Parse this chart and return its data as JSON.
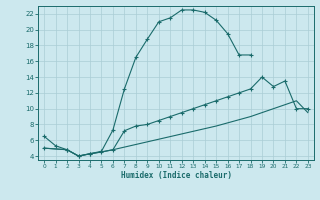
{
  "xlabel": "Humidex (Indice chaleur)",
  "bg_color": "#cce8ee",
  "grid_color": "#aacdd5",
  "line_color": "#1a6b6b",
  "xlim": [
    -0.5,
    23.5
  ],
  "ylim": [
    3.5,
    23.0
  ],
  "xticks": [
    0,
    1,
    2,
    3,
    4,
    5,
    6,
    7,
    8,
    9,
    10,
    11,
    12,
    13,
    14,
    15,
    16,
    17,
    18,
    19,
    20,
    21,
    22,
    23
  ],
  "yticks": [
    4,
    6,
    8,
    10,
    12,
    14,
    16,
    18,
    20,
    22
  ],
  "curve1_x": [
    0,
    1,
    2,
    3,
    4,
    5,
    6,
    7,
    8,
    9,
    10,
    11,
    12,
    13,
    14,
    15,
    16,
    17,
    18
  ],
  "curve1_y": [
    6.5,
    5.3,
    4.8,
    4.0,
    4.3,
    4.6,
    7.3,
    12.5,
    16.5,
    18.8,
    21.0,
    21.5,
    22.5,
    22.5,
    22.2,
    21.2,
    19.5,
    16.8,
    16.8
  ],
  "curve2_x": [
    0,
    2,
    3,
    4,
    5,
    6,
    7,
    8,
    9,
    10,
    11,
    12,
    13,
    14,
    15,
    16,
    17,
    18,
    19,
    20,
    21,
    22,
    23
  ],
  "curve2_y": [
    5.0,
    4.8,
    4.0,
    4.3,
    4.5,
    4.8,
    7.2,
    7.8,
    8.0,
    8.5,
    9.0,
    9.5,
    10.0,
    10.5,
    11.0,
    11.5,
    12.0,
    12.5,
    14.0,
    12.8,
    13.5,
    10.0,
    10.0
  ],
  "curve3_x": [
    0,
    2,
    3,
    6,
    9,
    12,
    15,
    18,
    19,
    20,
    21,
    22,
    23
  ],
  "curve3_y": [
    5.0,
    4.8,
    4.0,
    4.8,
    5.8,
    6.8,
    7.8,
    9.0,
    9.5,
    10.0,
    10.5,
    11.0,
    9.5
  ]
}
